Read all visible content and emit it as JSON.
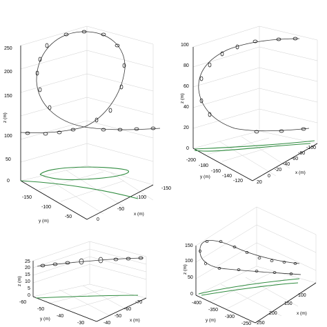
{
  "colors": {
    "trajectory": "#333333",
    "ground_track": "#2e8b3e",
    "grid": "#cfcfcf"
  },
  "chart_data": [
    {
      "type": "line3d",
      "title": "",
      "zlabel": "z (m)",
      "ylabel": "y (m)",
      "xlabel": "x (m)",
      "zticks": [
        "0",
        "50",
        "100",
        "150",
        "200",
        "250"
      ],
      "yticks": [
        "-150",
        "-100",
        "-50"
      ],
      "xticks": [
        "-150",
        "-100",
        "-50",
        "0"
      ],
      "zlim": [
        0,
        260
      ],
      "description_shape": "vertical loop",
      "points": [
        [
          -150,
          -100,
          90
        ],
        [
          -120,
          -95,
          90
        ],
        [
          -90,
          -90,
          95
        ],
        [
          -75,
          -85,
          110
        ],
        [
          -70,
          -80,
          140
        ],
        [
          -75,
          -75,
          180
        ],
        [
          -90,
          -70,
          220
        ],
        [
          -110,
          -65,
          245
        ],
        [
          -130,
          -60,
          250
        ],
        [
          -150,
          -55,
          235
        ],
        [
          -160,
          -50,
          200
        ],
        [
          -155,
          -45,
          160
        ],
        [
          -135,
          -40,
          120
        ],
        [
          -105,
          -35,
          95
        ],
        [
          -70,
          -30,
          90
        ],
        [
          -40,
          -25,
          88
        ],
        [
          -10,
          -20,
          88
        ]
      ]
    },
    {
      "type": "line3d",
      "title": "",
      "zlabel": "z (m)",
      "ylabel": "y (m)",
      "xlabel": "x (m)",
      "zticks": [
        "0",
        "20",
        "40",
        "60",
        "80",
        "100"
      ],
      "yticks": [
        "-200",
        "-180",
        "-160",
        "-140",
        "-120"
      ],
      "xticks": [
        "20",
        "0",
        "-20",
        "-40",
        "-60",
        "-80",
        "-100"
      ],
      "zlim": [
        0,
        100
      ],
      "description_shape": "turn-back arc",
      "points": [
        [
          -100,
          -120,
          100
        ],
        [
          -80,
          -140,
          100
        ],
        [
          -60,
          -160,
          95
        ],
        [
          -40,
          -180,
          85
        ],
        [
          -25,
          -195,
          65
        ],
        [
          -20,
          -200,
          45
        ],
        [
          -25,
          -190,
          25
        ],
        [
          -40,
          -175,
          15
        ],
        [
          -60,
          -160,
          10
        ],
        [
          -80,
          -145,
          8
        ],
        [
          -100,
          -130,
          8
        ]
      ]
    },
    {
      "type": "line3d",
      "title": "",
      "zlabel": "z (m)",
      "ylabel": "y (m)",
      "xlabel": "x (m)",
      "zticks": [
        "0",
        "5",
        "10",
        "15",
        "20",
        "25"
      ],
      "yticks": [
        "-60",
        "-50",
        "-40",
        "-30"
      ],
      "xticks": [
        "-40",
        "-50",
        "-60",
        "-70"
      ],
      "zlim": [
        0,
        28
      ],
      "description_shape": "level straight line",
      "points": [
        [
          -40,
          -60,
          22
        ],
        [
          -45,
          -55,
          23
        ],
        [
          -50,
          -50,
          24
        ],
        [
          -55,
          -45,
          25
        ],
        [
          -60,
          -40,
          25
        ],
        [
          -65,
          -35,
          26
        ],
        [
          -70,
          -30,
          26
        ]
      ]
    },
    {
      "type": "line3d",
      "title": "",
      "zlabel": "z (m)",
      "ylabel": "y (m)",
      "xlabel": "x (m)",
      "zticks": [
        "0",
        "50",
        "100",
        "150"
      ],
      "yticks": [
        "-400",
        "-350",
        "-300",
        "-250"
      ],
      "xticks": [
        "250",
        "200",
        "150",
        "100"
      ],
      "zlim": [
        0,
        160
      ],
      "description_shape": "teardrop turn",
      "points": [
        [
          100,
          -250,
          90
        ],
        [
          150,
          -280,
          95
        ],
        [
          200,
          -320,
          110
        ],
        [
          220,
          -360,
          135
        ],
        [
          200,
          -390,
          150
        ],
        [
          160,
          -400,
          145
        ],
        [
          130,
          -390,
          125
        ],
        [
          120,
          -360,
          105
        ],
        [
          140,
          -320,
          95
        ],
        [
          180,
          -290,
          92
        ],
        [
          230,
          -260,
          90
        ],
        [
          250,
          -250,
          88
        ]
      ]
    }
  ]
}
